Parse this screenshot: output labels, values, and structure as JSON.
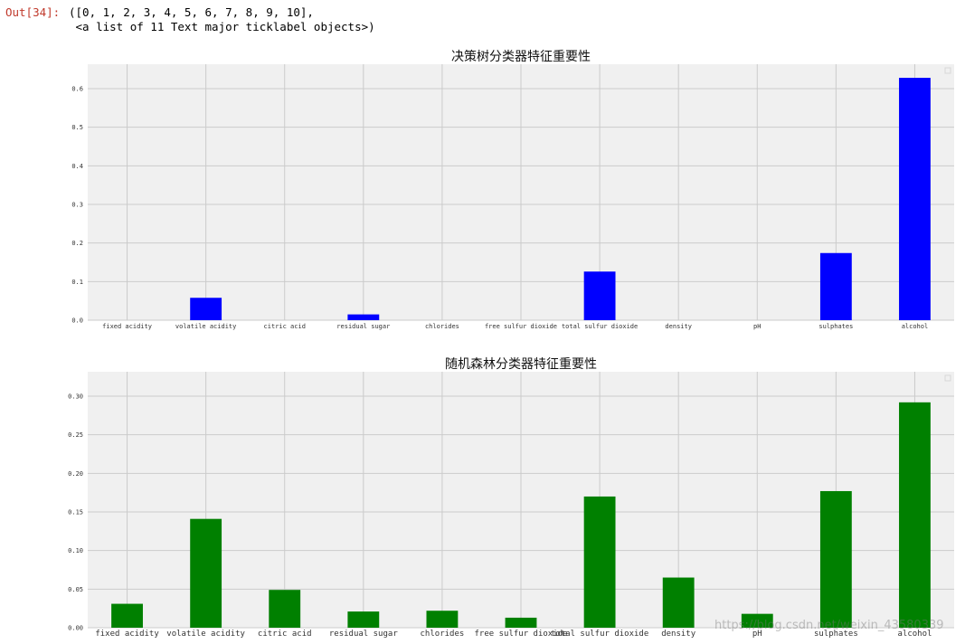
{
  "output": {
    "prompt": "Out[34]:",
    "line1": "([0, 1, 2, 3, 4, 5, 6, 7, 8, 9, 10],",
    "line2": " <a list of 11 Text major ticklabel objects>)"
  },
  "watermark": "https://blog.csdn.net/weixin_43580339",
  "chart_data": [
    {
      "type": "bar",
      "title": "决策树分类器特征重要性",
      "categories": [
        "fixed acidity",
        "volatile acidity",
        "citric acid",
        "residual sugar",
        "chlorides",
        "free sulfur dioxide",
        "total sulfur dioxide",
        "density",
        "pH",
        "sulphates",
        "alcohol"
      ],
      "values": [
        0.0,
        0.058,
        0.0,
        0.015,
        0.0,
        0.0,
        0.126,
        0.0,
        0.0,
        0.174,
        0.628
      ],
      "yticks": [
        "0.0",
        "0.1",
        "0.2",
        "0.3",
        "0.4",
        "0.5",
        "0.6"
      ],
      "ylim": [
        0,
        0.6
      ],
      "color": "#0000ff",
      "grid": true
    },
    {
      "type": "bar",
      "title": "随机森林分类器特征重要性",
      "categories": [
        "fixed acidity",
        "volatile acidity",
        "citric acid",
        "residual sugar",
        "chlorides",
        "free sulfur dioxide",
        "total sulfur dioxide",
        "density",
        "pH",
        "sulphates",
        "alcohol"
      ],
      "values": [
        0.031,
        0.141,
        0.049,
        0.021,
        0.022,
        0.013,
        0.17,
        0.065,
        0.018,
        0.177,
        0.292
      ],
      "yticks": [
        "0.00",
        "0.05",
        "0.10",
        "0.15",
        "0.20",
        "0.25",
        "0.30"
      ],
      "ylim": [
        0,
        0.3
      ],
      "color": "#008000",
      "grid": true
    }
  ]
}
